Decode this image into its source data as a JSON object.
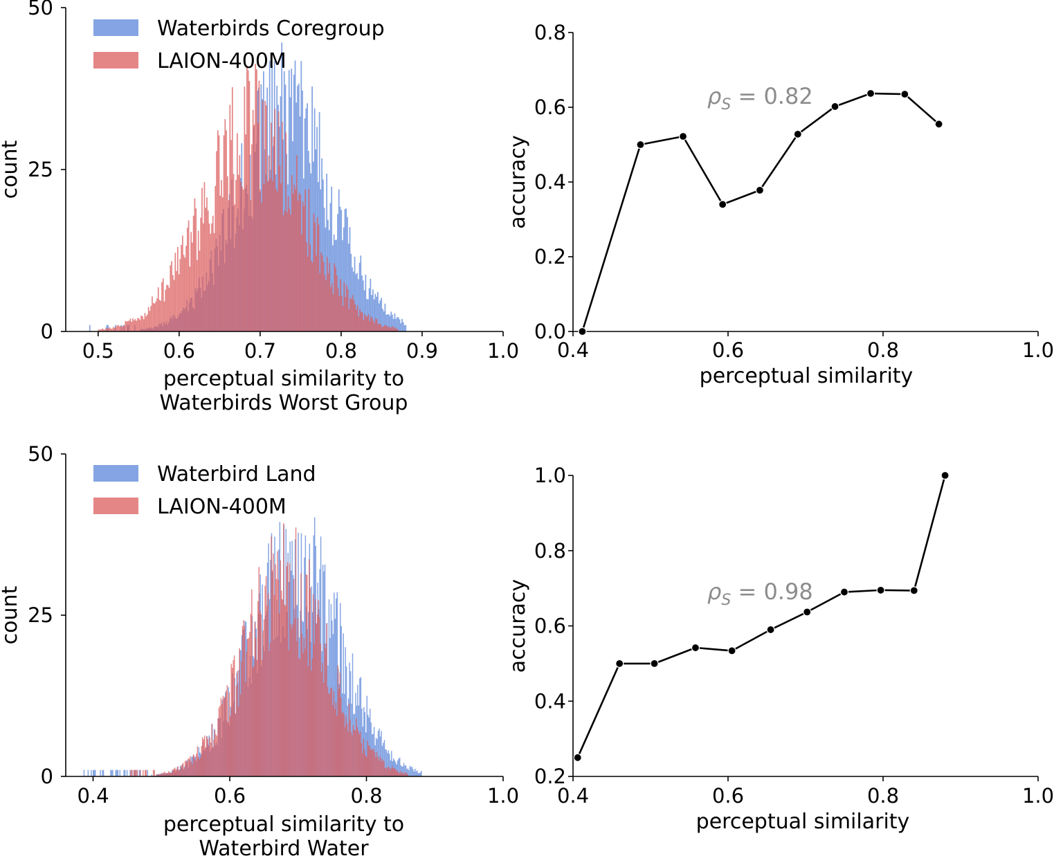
{
  "colors": {
    "blue": "#5b86d9",
    "red": "#dc5e5e",
    "line": "#000000",
    "annotation": "#8c8c8c"
  },
  "chart_data": [
    {
      "id": "hist-top",
      "type": "bar",
      "subtype": "histogram",
      "xlabel_lines": [
        "perceptual similarity to",
        "Waterbirds Worst Group"
      ],
      "ylabel": "count",
      "xlim": [
        0.46,
        1.0
      ],
      "ylim": [
        0,
        50
      ],
      "xticks": [
        "0.5",
        "0.6",
        "0.7",
        "0.8",
        "0.9",
        "1.0"
      ],
      "yticks": [
        "0",
        "25",
        "50"
      ],
      "legend_position": "top-left",
      "series": [
        {
          "name": "Waterbirds Coregroup",
          "color": "blue",
          "distribution": {
            "mean": 0.73,
            "std": 0.058,
            "peak_count": 39,
            "min": 0.48,
            "max": 0.88
          }
        },
        {
          "name": "LAION-400M",
          "color": "red",
          "distribution": {
            "mean": 0.69,
            "std": 0.062,
            "peak_count": 36,
            "min": 0.5,
            "max": 0.87
          }
        }
      ]
    },
    {
      "id": "line-top",
      "type": "line",
      "xlabel": "perceptual similarity",
      "ylabel": "accuracy",
      "xlim": [
        0.4,
        1.0
      ],
      "ylim": [
        0.0,
        0.8
      ],
      "xticks": [
        "0.4",
        "0.6",
        "0.8",
        "1.0"
      ],
      "yticks": [
        "0.0",
        "0.2",
        "0.4",
        "0.6",
        "0.8"
      ],
      "annotation": {
        "symbol": "ρ",
        "subscript": "S",
        "text": " = 0.82"
      },
      "x": [
        0.412,
        0.487,
        0.542,
        0.593,
        0.641,
        0.69,
        0.738,
        0.784,
        0.828,
        0.872
      ],
      "y": [
        0.0,
        0.5,
        0.522,
        0.34,
        0.378,
        0.528,
        0.602,
        0.637,
        0.635,
        0.555
      ]
    },
    {
      "id": "hist-bottom",
      "type": "bar",
      "subtype": "histogram",
      "xlabel_lines": [
        "perceptual similarity to",
        "Waterbird Water"
      ],
      "ylabel": "count",
      "xlim": [
        0.36,
        1.0
      ],
      "ylim": [
        0,
        50
      ],
      "xticks": [
        "0.4",
        "0.6",
        "0.8",
        "1.0"
      ],
      "yticks": [
        "0",
        "25",
        "50"
      ],
      "legend_position": "top-left",
      "series": [
        {
          "name": "Waterbird Land",
          "color": "blue",
          "distribution": {
            "mean": 0.695,
            "std": 0.066,
            "peak_count": 39,
            "min": 0.38,
            "max": 0.88
          }
        },
        {
          "name": "LAION-400M",
          "color": "red",
          "distribution": {
            "mean": 0.68,
            "std": 0.062,
            "peak_count": 35,
            "min": 0.45,
            "max": 0.86
          }
        }
      ]
    },
    {
      "id": "line-bottom",
      "type": "line",
      "xlabel": "perceptual similarity",
      "ylabel": "accuracy",
      "xlim": [
        0.4,
        1.0
      ],
      "ylim": [
        0.2,
        1.0
      ],
      "xticks": [
        "0.4",
        "0.6",
        "0.8",
        "1.0"
      ],
      "yticks": [
        "0.2",
        "0.4",
        "0.6",
        "0.8",
        "1.0"
      ],
      "annotation": {
        "symbol": "ρ",
        "subscript": "S",
        "text": " = 0.98"
      },
      "x": [
        0.406,
        0.46,
        0.505,
        0.558,
        0.605,
        0.655,
        0.702,
        0.75,
        0.797,
        0.84,
        0.88
      ],
      "y": [
        0.25,
        0.5,
        0.5,
        0.542,
        0.534,
        0.59,
        0.637,
        0.69,
        0.695,
        0.694,
        1.0
      ]
    }
  ]
}
